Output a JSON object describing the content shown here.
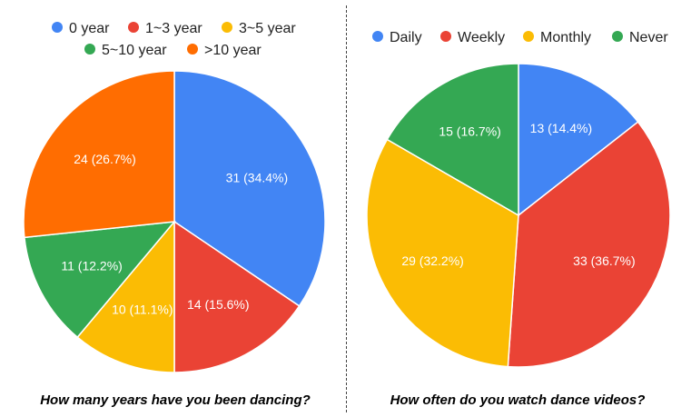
{
  "chart_data": [
    {
      "type": "pie",
      "title": "How many years have you been dancing?",
      "categories": [
        "0 year",
        "1~3 year",
        "3~5 year",
        "5~10 year",
        ">10 year"
      ],
      "values": [
        31,
        14,
        10,
        11,
        24
      ],
      "labels": [
        "31 (34.4%)",
        "14 (15.6%)",
        "10 (11.1%)",
        "11 (12.2%)",
        "24 (26.7%)"
      ],
      "colors": [
        "#4285F4",
        "#EA4335",
        "#FBBC04",
        "#34A853",
        "#FF6D01"
      ],
      "legend_position": "top"
    },
    {
      "type": "pie",
      "title": "How often do you watch dance videos?",
      "categories": [
        "Daily",
        "Weekly",
        "Monthly",
        "Never"
      ],
      "values": [
        13,
        33,
        29,
        15
      ],
      "labels": [
        "13 (14.4%)",
        "33 (36.7%)",
        "29 (32.2%)",
        "15 (16.7%)"
      ],
      "colors": [
        "#4285F4",
        "#EA4335",
        "#FBBC04",
        "#34A853"
      ],
      "legend_position": "top"
    }
  ]
}
